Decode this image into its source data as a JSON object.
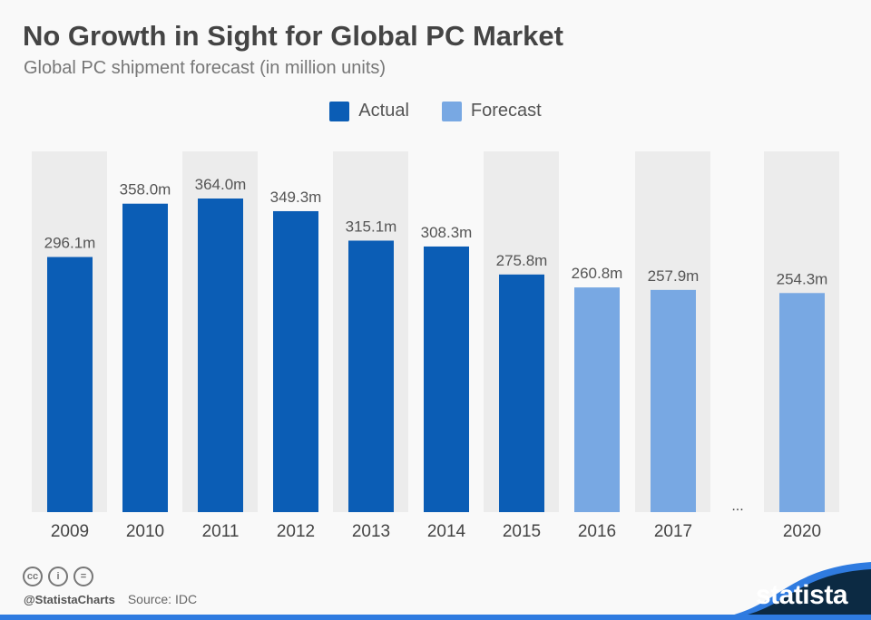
{
  "title": "No Growth in Sight for Global PC Market",
  "subtitle": "Global PC shipment forecast (in million units)",
  "colors": {
    "actual": "#0b5db5",
    "forecast": "#78a8e3",
    "column_bg": "#ececec",
    "footer_dark": "#0c2a43",
    "footer_accent": "#2f7be0"
  },
  "footer": {
    "handle": "@StatistaCharts",
    "source": "Source: IDC",
    "brand": "statista",
    "icons": [
      "cc-icon",
      "by-icon",
      "nd-icon"
    ]
  },
  "chart_data": {
    "type": "bar",
    "title": "No Growth in Sight for Global PC Market",
    "categories": [
      "2009",
      "2010",
      "2011",
      "2012",
      "2013",
      "2014",
      "2015",
      "2016",
      "2017",
      "...",
      "2020"
    ],
    "series": [
      {
        "name": "Actual",
        "values": [
          296.1,
          358.0,
          364.0,
          349.3,
          315.1,
          308.3,
          275.8,
          null,
          null,
          null,
          null
        ]
      },
      {
        "name": "Forecast",
        "values": [
          null,
          null,
          null,
          null,
          null,
          null,
          null,
          260.8,
          257.9,
          null,
          254.3
        ]
      }
    ],
    "data_labels": [
      "296.1m",
      "358.0m",
      "364.0m",
      "349.3m",
      "315.1m",
      "308.3m",
      "275.8m",
      "260.8m",
      "257.9m",
      "",
      "254.3m"
    ],
    "ylim": [
      0,
      364
    ],
    "legend": "top-center",
    "grid": false
  }
}
